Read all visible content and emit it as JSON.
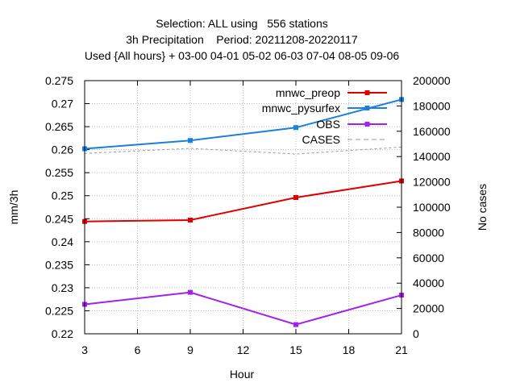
{
  "chart_data": {
    "type": "line",
    "title_lines": [
      "Selection: ALL using   556 stations",
      "3h Precipitation    Period: 20211208-20220117",
      "Used {All hours} + 03-00 04-01 05-02 06-03 07-04 08-05 09-06"
    ],
    "xlabel": "Hour",
    "ylabel": "mm/3h",
    "y2label": "No cases",
    "x": [
      3,
      9,
      15,
      21
    ],
    "xlim": [
      3,
      21
    ],
    "xticks": [
      3,
      6,
      9,
      12,
      15,
      18,
      21
    ],
    "ylim": [
      0.22,
      0.275
    ],
    "yticks": [
      0.22,
      0.225,
      0.23,
      0.235,
      0.24,
      0.245,
      0.25,
      0.255,
      0.26,
      0.265,
      0.27,
      0.275
    ],
    "y2lim": [
      0,
      200000
    ],
    "y2ticks": [
      0,
      20000,
      40000,
      60000,
      80000,
      100000,
      120000,
      140000,
      160000,
      180000,
      200000
    ],
    "grid": true,
    "legend_position": "top-right",
    "series": [
      {
        "name": "mnwc_preop",
        "color": "#e00000",
        "axis": "left",
        "style": "solid",
        "marker": true,
        "values": [
          0.2444,
          0.2447,
          0.2496,
          0.2532
        ]
      },
      {
        "name": "mnwc_pysurfex",
        "color": "#1a80e0",
        "axis": "left",
        "style": "solid",
        "marker": true,
        "values": [
          0.2602,
          0.262,
          0.2648,
          0.2709
        ]
      },
      {
        "name": "OBS",
        "color": "#a020f0",
        "axis": "left",
        "style": "solid",
        "marker": true,
        "values": [
          0.2264,
          0.229,
          0.222,
          0.2284
        ]
      },
      {
        "name": "CASES",
        "color": "#999999",
        "axis": "right",
        "style": "dashed",
        "marker": false,
        "values": [
          142500,
          146500,
          142000,
          147500
        ]
      }
    ]
  }
}
